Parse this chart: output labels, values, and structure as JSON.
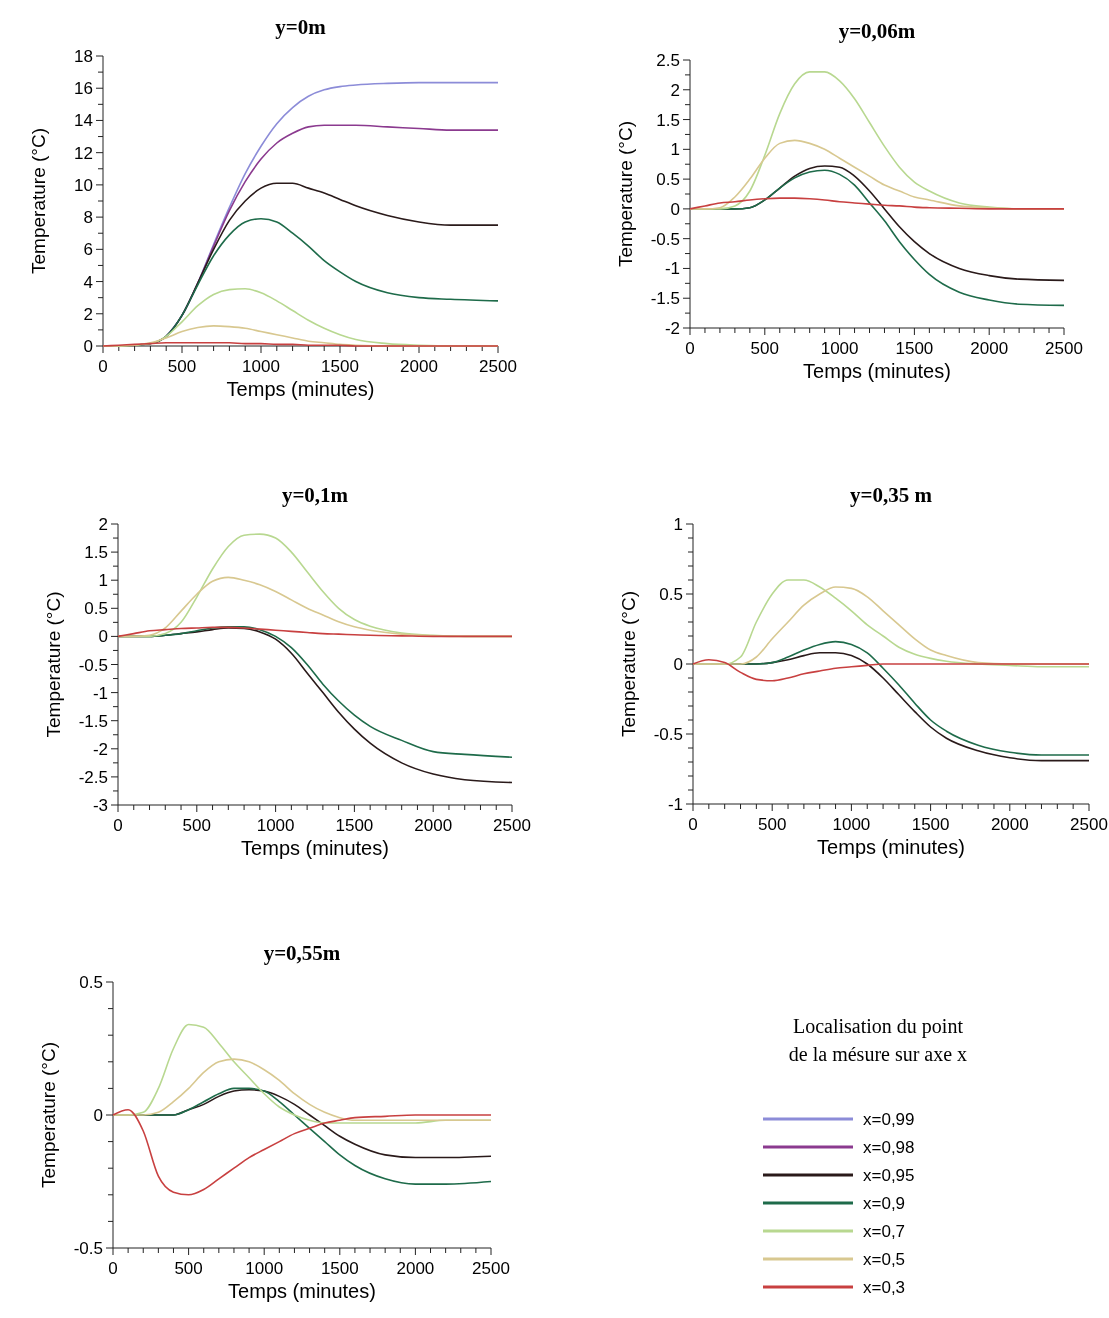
{
  "chart_data": [
    {
      "type": "line",
      "title": "y=0m",
      "xlabel": "Temps (minutes)",
      "ylabel": "Temperature (°C)",
      "legend": "bottom right",
      "legend_title": "Localisation du point de la mésure sur axe x",
      "x": [
        0,
        100,
        200,
        300,
        400,
        500,
        600,
        700,
        800,
        900,
        1000,
        1100,
        1200,
        1300,
        1400,
        1500,
        1600,
        1800,
        2000,
        2200,
        2500
      ],
      "xlim": [
        0,
        2500
      ],
      "ylim": [
        0,
        18
      ],
      "xticks": [
        0,
        {
          "value": 100,
          "label": null
        },
        {
          "value": 200,
          "label": null
        },
        {
          "value": 300,
          "label": null
        },
        {
          "value": 400,
          "label": null
        },
        500,
        {
          "value": 600,
          "label": null
        },
        {
          "value": 700,
          "label": null
        },
        {
          "value": 800,
          "label": null
        },
        {
          "value": 900,
          "label": null
        },
        1000,
        {
          "value": 1100,
          "label": null
        },
        {
          "value": 1200,
          "label": null
        },
        {
          "value": 1300,
          "label": null
        },
        {
          "value": 1400,
          "label": null
        },
        1500,
        {
          "value": 1600,
          "label": null
        },
        {
          "value": 1700,
          "label": null
        },
        {
          "value": 1800,
          "label": null
        },
        {
          "value": 1900,
          "label": null
        },
        2000,
        {
          "value": 2100,
          "label": null
        },
        {
          "value": 2200,
          "label": null
        },
        {
          "value": 2300,
          "label": null
        },
        {
          "value": 2400,
          "label": null
        },
        2500
      ],
      "yticks": [
        0,
        {
          "value": 1,
          "label": null
        },
        2,
        {
          "value": 3,
          "label": null
        },
        4,
        {
          "value": 5,
          "label": null
        },
        6,
        {
          "value": 7,
          "label": null
        },
        8,
        {
          "value": 9,
          "label": null
        },
        10,
        {
          "value": 11,
          "label": null
        },
        12,
        {
          "value": 13,
          "label": null
        },
        14,
        {
          "value": 15,
          "label": null
        },
        16,
        {
          "value": 17,
          "label": null
        },
        18
      ],
      "series": [
        {
          "name": "x=0,99",
          "color": "#8c8cd8",
          "values": [
            null,
            null,
            null,
            null,
            0.6,
            1.9,
            3.9,
            6.3,
            8.6,
            10.7,
            12.4,
            13.8,
            14.8,
            15.5,
            15.9,
            16.1,
            16.2,
            16.3,
            16.35,
            16.35,
            16.35
          ]
        },
        {
          "name": "x=0,98",
          "color": "#8b3a8f",
          "values": [
            0,
            0,
            0.05,
            0.15,
            0.6,
            1.9,
            3.9,
            6.2,
            8.4,
            10.2,
            11.6,
            12.6,
            13.2,
            13.6,
            13.7,
            13.7,
            13.7,
            13.6,
            13.5,
            13.4,
            13.4
          ]
        },
        {
          "name": "x=0,95",
          "color": "#2a1a1a",
          "values": [
            0,
            0,
            0.05,
            0.15,
            0.6,
            1.9,
            3.9,
            6.0,
            7.8,
            9.0,
            9.8,
            10.1,
            10.1,
            9.8,
            9.5,
            9.1,
            8.7,
            8.1,
            7.7,
            7.5,
            7.5
          ]
        },
        {
          "name": "x=0,9",
          "color": "#1e6b4a",
          "values": [
            0,
            0,
            0.05,
            0.15,
            0.6,
            1.9,
            3.8,
            5.6,
            6.9,
            7.7,
            7.9,
            7.7,
            7.0,
            6.2,
            5.3,
            4.6,
            4.0,
            3.3,
            3.0,
            2.9,
            2.8
          ]
        },
        {
          "name": "x=0,7",
          "color": "#b8d890",
          "values": [
            0,
            0,
            0.05,
            0.15,
            0.6,
            1.5,
            2.5,
            3.2,
            3.5,
            3.55,
            3.3,
            2.8,
            2.2,
            1.6,
            1.1,
            0.7,
            0.4,
            0.15,
            0.05,
            0,
            0
          ]
        },
        {
          "name": "x=0,5",
          "color": "#d8c890",
          "values": [
            0,
            0,
            0.05,
            0.2,
            0.5,
            0.9,
            1.15,
            1.25,
            1.2,
            1.1,
            0.9,
            0.7,
            0.5,
            0.3,
            0.2,
            0.1,
            0.05,
            0,
            0,
            0,
            0
          ]
        },
        {
          "name": "x=0,3",
          "color": "#c84040",
          "values": [
            0,
            0.05,
            0.1,
            0.15,
            0.2,
            0.2,
            0.2,
            0.2,
            0.2,
            0.15,
            0.15,
            0.1,
            0.1,
            0.05,
            0.05,
            0.05,
            0,
            0,
            0,
            0,
            0
          ]
        }
      ]
    },
    {
      "type": "line",
      "title": "y=0,06m",
      "xlabel": "Temps (minutes)",
      "ylabel": "Temperature (°C)",
      "x": [
        0,
        100,
        200,
        300,
        400,
        500,
        600,
        700,
        800,
        900,
        1000,
        1100,
        1200,
        1300,
        1400,
        1500,
        1600,
        1800,
        2000,
        2200,
        2500
      ],
      "xlim": [
        0,
        2500
      ],
      "ylim": [
        -2,
        2.5
      ],
      "xticks": [
        0,
        {
          "value": 100,
          "label": null
        },
        {
          "value": 200,
          "label": null
        },
        {
          "value": 300,
          "label": null
        },
        {
          "value": 400,
          "label": null
        },
        500,
        {
          "value": 600,
          "label": null
        },
        {
          "value": 700,
          "label": null
        },
        {
          "value": 800,
          "label": null
        },
        {
          "value": 900,
          "label": null
        },
        1000,
        {
          "value": 1100,
          "label": null
        },
        {
          "value": 1200,
          "label": null
        },
        {
          "value": 1300,
          "label": null
        },
        {
          "value": 1400,
          "label": null
        },
        1500,
        {
          "value": 1600,
          "label": null
        },
        {
          "value": 1700,
          "label": null
        },
        {
          "value": 1800,
          "label": null
        },
        {
          "value": 1900,
          "label": null
        },
        2000,
        {
          "value": 2100,
          "label": null
        },
        {
          "value": 2200,
          "label": null
        },
        {
          "value": 2300,
          "label": null
        },
        {
          "value": 2400,
          "label": null
        },
        2500
      ],
      "yticks": [
        -2,
        {
          "value": -1.75,
          "label": null
        },
        -1.5,
        {
          "value": -1.25,
          "label": null
        },
        -1,
        {
          "value": -0.75,
          "label": null
        },
        -0.5,
        {
          "value": -0.25,
          "label": null
        },
        0,
        {
          "value": 0.25,
          "label": null
        },
        0.5,
        {
          "value": 0.75,
          "label": null
        },
        1,
        {
          "value": 1.25,
          "label": null
        },
        1.5,
        {
          "value": 1.75,
          "label": null
        },
        2,
        {
          "value": 2.25,
          "label": null
        },
        2.5
      ],
      "series": [
        {
          "color": "#2a1a1a",
          "values": [
            0,
            0,
            0,
            0,
            0.02,
            0.15,
            0.35,
            0.55,
            0.68,
            0.72,
            0.7,
            0.55,
            0.3,
            0,
            -0.3,
            -0.55,
            -0.75,
            -1.0,
            -1.12,
            -1.18,
            -1.2
          ]
        },
        {
          "color": "#1e6b4a",
          "values": [
            0,
            0,
            0,
            0,
            0.02,
            0.15,
            0.35,
            0.52,
            0.62,
            0.65,
            0.58,
            0.4,
            0.1,
            -0.2,
            -0.55,
            -0.85,
            -1.1,
            -1.4,
            -1.53,
            -1.6,
            -1.62
          ]
        },
        {
          "color": "#b8d890",
          "values": [
            0,
            0,
            0,
            0.05,
            0.3,
            0.9,
            1.6,
            2.1,
            2.3,
            2.3,
            2.15,
            1.85,
            1.45,
            1.05,
            0.7,
            0.45,
            0.3,
            0.1,
            0.03,
            0,
            0
          ]
        },
        {
          "color": "#d8c890",
          "values": [
            0,
            0,
            0.02,
            0.2,
            0.5,
            0.85,
            1.1,
            1.15,
            1.1,
            1.0,
            0.85,
            0.7,
            0.55,
            0.4,
            0.3,
            0.2,
            0.15,
            0.05,
            0.02,
            0,
            0
          ]
        },
        {
          "color": "#c84040",
          "values": [
            0,
            0.05,
            0.1,
            0.12,
            0.15,
            0.17,
            0.18,
            0.18,
            0.17,
            0.15,
            0.12,
            0.1,
            0.08,
            0.06,
            0.05,
            0.03,
            0.02,
            0.01,
            0,
            0,
            0
          ]
        }
      ]
    },
    {
      "type": "line",
      "title": "y=0,1m",
      "xlabel": "Temps (minutes)",
      "ylabel": "Temperature (°C)",
      "x": [
        0,
        100,
        200,
        300,
        400,
        500,
        600,
        700,
        800,
        900,
        1000,
        1100,
        1200,
        1300,
        1400,
        1500,
        1600,
        1800,
        2000,
        2200,
        2500
      ],
      "xlim": [
        0,
        2500
      ],
      "ylim": [
        -3,
        2
      ],
      "xticks": [
        0,
        {
          "value": 100,
          "label": null
        },
        {
          "value": 200,
          "label": null
        },
        {
          "value": 300,
          "label": null
        },
        {
          "value": 400,
          "label": null
        },
        500,
        {
          "value": 600,
          "label": null
        },
        {
          "value": 700,
          "label": null
        },
        {
          "value": 800,
          "label": null
        },
        {
          "value": 900,
          "label": null
        },
        1000,
        {
          "value": 1100,
          "label": null
        },
        {
          "value": 1200,
          "label": null
        },
        {
          "value": 1300,
          "label": null
        },
        {
          "value": 1400,
          "label": null
        },
        1500,
        {
          "value": 1600,
          "label": null
        },
        {
          "value": 1700,
          "label": null
        },
        {
          "value": 1800,
          "label": null
        },
        {
          "value": 1900,
          "label": null
        },
        2000,
        {
          "value": 2100,
          "label": null
        },
        {
          "value": 2200,
          "label": null
        },
        {
          "value": 2300,
          "label": null
        },
        {
          "value": 2400,
          "label": null
        },
        2500
      ],
      "yticks": [
        -3,
        {
          "value": -2.75,
          "label": null
        },
        -2.5,
        {
          "value": -2.25,
          "label": null
        },
        -2,
        {
          "value": -1.75,
          "label": null
        },
        -1.5,
        {
          "value": -1.25,
          "label": null
        },
        -1,
        {
          "value": -0.75,
          "label": null
        },
        -0.5,
        {
          "value": -0.25,
          "label": null
        },
        0,
        {
          "value": 0.25,
          "label": null
        },
        0.5,
        {
          "value": 0.75,
          "label": null
        },
        1,
        {
          "value": 1.25,
          "label": null
        },
        1.5,
        {
          "value": 1.75,
          "label": null
        },
        2
      ],
      "series": [
        {
          "color": "#2a1a1a",
          "values": [
            0,
            0,
            0,
            0.02,
            0.05,
            0.08,
            0.12,
            0.15,
            0.14,
            0.08,
            -0.05,
            -0.3,
            -0.65,
            -1.0,
            -1.35,
            -1.65,
            -1.9,
            -2.25,
            -2.45,
            -2.55,
            -2.6
          ]
        },
        {
          "color": "#1e6b4a",
          "values": [
            0,
            0,
            0,
            0.02,
            0.05,
            0.1,
            0.15,
            0.17,
            0.17,
            0.12,
            0,
            -0.2,
            -0.5,
            -0.85,
            -1.15,
            -1.4,
            -1.6,
            -1.85,
            -2.05,
            -2.1,
            -2.15
          ]
        },
        {
          "color": "#b8d890",
          "values": [
            0,
            0,
            0,
            0.05,
            0.25,
            0.7,
            1.2,
            1.6,
            1.8,
            1.82,
            1.75,
            1.5,
            1.15,
            0.8,
            0.5,
            0.3,
            0.18,
            0.06,
            0.02,
            0,
            0
          ]
        },
        {
          "color": "#d8c890",
          "values": [
            0,
            0,
            0.02,
            0.15,
            0.45,
            0.75,
            0.98,
            1.05,
            1.0,
            0.92,
            0.8,
            0.65,
            0.5,
            0.38,
            0.26,
            0.17,
            0.11,
            0.04,
            0.01,
            0,
            0
          ]
        },
        {
          "color": "#c84040",
          "values": [
            0,
            0.05,
            0.1,
            0.12,
            0.14,
            0.15,
            0.16,
            0.16,
            0.15,
            0.13,
            0.11,
            0.09,
            0.07,
            0.05,
            0.04,
            0.03,
            0.02,
            0.01,
            0,
            0,
            0
          ]
        }
      ]
    },
    {
      "type": "line",
      "title": "y=0,35 m",
      "xlabel": "Temps (minutes)",
      "ylabel": "Temperature (°C)",
      "x": [
        0,
        100,
        200,
        300,
        400,
        500,
        600,
        700,
        800,
        900,
        1000,
        1100,
        1200,
        1300,
        1400,
        1500,
        1600,
        1800,
        2000,
        2200,
        2500
      ],
      "xlim": [
        0,
        2500
      ],
      "ylim": [
        -1,
        1
      ],
      "xticks": [
        0,
        {
          "value": 100,
          "label": null
        },
        {
          "value": 200,
          "label": null
        },
        {
          "value": 300,
          "label": null
        },
        {
          "value": 400,
          "label": null
        },
        500,
        {
          "value": 600,
          "label": null
        },
        {
          "value": 700,
          "label": null
        },
        {
          "value": 800,
          "label": null
        },
        {
          "value": 900,
          "label": null
        },
        1000,
        {
          "value": 1100,
          "label": null
        },
        {
          "value": 1200,
          "label": null
        },
        {
          "value": 1300,
          "label": null
        },
        {
          "value": 1400,
          "label": null
        },
        1500,
        {
          "value": 1600,
          "label": null
        },
        {
          "value": 1700,
          "label": null
        },
        {
          "value": 1800,
          "label": null
        },
        {
          "value": 1900,
          "label": null
        },
        2000,
        {
          "value": 2100,
          "label": null
        },
        {
          "value": 2200,
          "label": null
        },
        {
          "value": 2300,
          "label": null
        },
        {
          "value": 2400,
          "label": null
        },
        2500
      ],
      "yticks": [
        -1,
        {
          "value": -0.9,
          "label": null
        },
        {
          "value": -0.8,
          "label": null
        },
        {
          "value": -0.7,
          "label": null
        },
        {
          "value": -0.6,
          "label": null
        },
        -0.5,
        {
          "value": -0.4,
          "label": null
        },
        {
          "value": -0.3,
          "label": null
        },
        {
          "value": -0.2,
          "label": null
        },
        {
          "value": -0.1,
          "label": null
        },
        0,
        {
          "value": 0.1,
          "label": null
        },
        {
          "value": 0.2,
          "label": null
        },
        {
          "value": 0.3,
          "label": null
        },
        {
          "value": 0.4,
          "label": null
        },
        0.5,
        {
          "value": 0.6,
          "label": null
        },
        {
          "value": 0.7,
          "label": null
        },
        {
          "value": 0.8,
          "label": null
        },
        {
          "value": 0.9,
          "label": null
        },
        1
      ],
      "series": [
        {
          "color": "#2a1a1a",
          "values": [
            0,
            0,
            0,
            0,
            0,
            0.01,
            0.03,
            0.06,
            0.08,
            0.08,
            0.06,
            0,
            -0.1,
            -0.22,
            -0.34,
            -0.45,
            -0.53,
            -0.62,
            -0.67,
            -0.69,
            -0.69
          ]
        },
        {
          "color": "#1e6b4a",
          "values": [
            null,
            null,
            0,
            0,
            0,
            0.01,
            0.05,
            0.1,
            0.14,
            0.16,
            0.14,
            0.08,
            -0.03,
            -0.15,
            -0.28,
            -0.4,
            -0.48,
            -0.58,
            -0.63,
            -0.65,
            -0.65
          ]
        },
        {
          "color": "#b8d890",
          "values": [
            0,
            0,
            0,
            0.05,
            0.3,
            0.5,
            0.6,
            0.6,
            0.55,
            0.47,
            0.38,
            0.28,
            0.2,
            0.12,
            0.07,
            0.04,
            0.02,
            0,
            -0.01,
            -0.02,
            -0.02
          ]
        },
        {
          "color": "#d8c890",
          "values": [
            0,
            0,
            0,
            0,
            0.05,
            0.18,
            0.3,
            0.42,
            0.5,
            0.55,
            0.54,
            0.48,
            0.38,
            0.28,
            0.18,
            0.1,
            0.06,
            0.01,
            0,
            0,
            0
          ]
        },
        {
          "color": "#c84040",
          "values": [
            0,
            0.03,
            0.01,
            -0.06,
            -0.11,
            -0.12,
            -0.1,
            -0.07,
            -0.05,
            -0.03,
            -0.02,
            -0.01,
            0,
            0,
            0,
            0,
            0,
            0,
            0,
            0,
            0
          ]
        }
      ]
    },
    {
      "type": "line",
      "title": "y=0,55m",
      "xlabel": "Temps (minutes)",
      "ylabel": "Temperature (°C)",
      "x": [
        0,
        100,
        200,
        300,
        400,
        500,
        600,
        700,
        800,
        900,
        1000,
        1100,
        1200,
        1300,
        1400,
        1500,
        1600,
        1800,
        2000,
        2200,
        2500
      ],
      "xlim": [
        0,
        2500
      ],
      "ylim": [
        -0.5,
        0.5
      ],
      "xticks": [
        0,
        {
          "value": 100,
          "label": null
        },
        {
          "value": 200,
          "label": null
        },
        {
          "value": 300,
          "label": null
        },
        {
          "value": 400,
          "label": null
        },
        500,
        {
          "value": 600,
          "label": null
        },
        {
          "value": 700,
          "label": null
        },
        {
          "value": 800,
          "label": null
        },
        {
          "value": 900,
          "label": null
        },
        1000,
        {
          "value": 1100,
          "label": null
        },
        {
          "value": 1200,
          "label": null
        },
        {
          "value": 1300,
          "label": null
        },
        {
          "value": 1400,
          "label": null
        },
        1500,
        {
          "value": 1600,
          "label": null
        },
        {
          "value": 1700,
          "label": null
        },
        {
          "value": 1800,
          "label": null
        },
        {
          "value": 1900,
          "label": null
        },
        2000,
        {
          "value": 2100,
          "label": null
        },
        {
          "value": 2200,
          "label": null
        },
        {
          "value": 2300,
          "label": null
        },
        {
          "value": 2400,
          "label": null
        },
        2500
      ],
      "yticks": [
        -0.5,
        {
          "value": -0.4,
          "label": null
        },
        {
          "value": -0.3,
          "label": null
        },
        {
          "value": -0.2,
          "label": null
        },
        {
          "value": -0.1,
          "label": null
        },
        0,
        {
          "value": 0.1,
          "label": null
        },
        {
          "value": 0.2,
          "label": null
        },
        {
          "value": 0.3,
          "label": null
        },
        {
          "value": 0.4,
          "label": null
        },
        0.5
      ],
      "series": [
        {
          "color": "#2a1a1a",
          "values": [
            0,
            0,
            0,
            0,
            0,
            0.02,
            0.04,
            0.07,
            0.09,
            0.095,
            0.09,
            0.07,
            0.04,
            0,
            -0.04,
            -0.08,
            -0.11,
            -0.15,
            -0.16,
            -0.16,
            -0.155
          ]
        },
        {
          "color": "#1e6b4a",
          "values": [
            0,
            0,
            0,
            0,
            0,
            0.02,
            0.05,
            0.08,
            0.1,
            0.1,
            0.09,
            0.05,
            0,
            -0.05,
            -0.1,
            -0.15,
            -0.19,
            -0.24,
            -0.26,
            -0.26,
            -0.25
          ]
        },
        {
          "color": "#b8d890",
          "values": [
            0,
            0,
            0.01,
            0.1,
            0.25,
            0.34,
            0.33,
            0.27,
            0.2,
            0.14,
            0.08,
            0.03,
            0,
            -0.02,
            -0.03,
            -0.03,
            -0.03,
            -0.03,
            -0.03,
            -0.02,
            -0.02
          ]
        },
        {
          "color": "#d8c890",
          "values": [
            0,
            0,
            0,
            0.01,
            0.05,
            0.1,
            0.16,
            0.2,
            0.21,
            0.2,
            0.17,
            0.13,
            0.08,
            0.04,
            0.01,
            -0.01,
            -0.02,
            -0.02,
            -0.02,
            -0.02,
            -0.02
          ]
        },
        {
          "color": "#c84040",
          "values": [
            0,
            0.02,
            -0.06,
            -0.23,
            -0.29,
            -0.3,
            -0.28,
            -0.24,
            -0.2,
            -0.16,
            -0.13,
            -0.1,
            -0.07,
            -0.05,
            -0.03,
            -0.02,
            -0.01,
            -0.005,
            0,
            0,
            0
          ]
        }
      ]
    }
  ]
}
